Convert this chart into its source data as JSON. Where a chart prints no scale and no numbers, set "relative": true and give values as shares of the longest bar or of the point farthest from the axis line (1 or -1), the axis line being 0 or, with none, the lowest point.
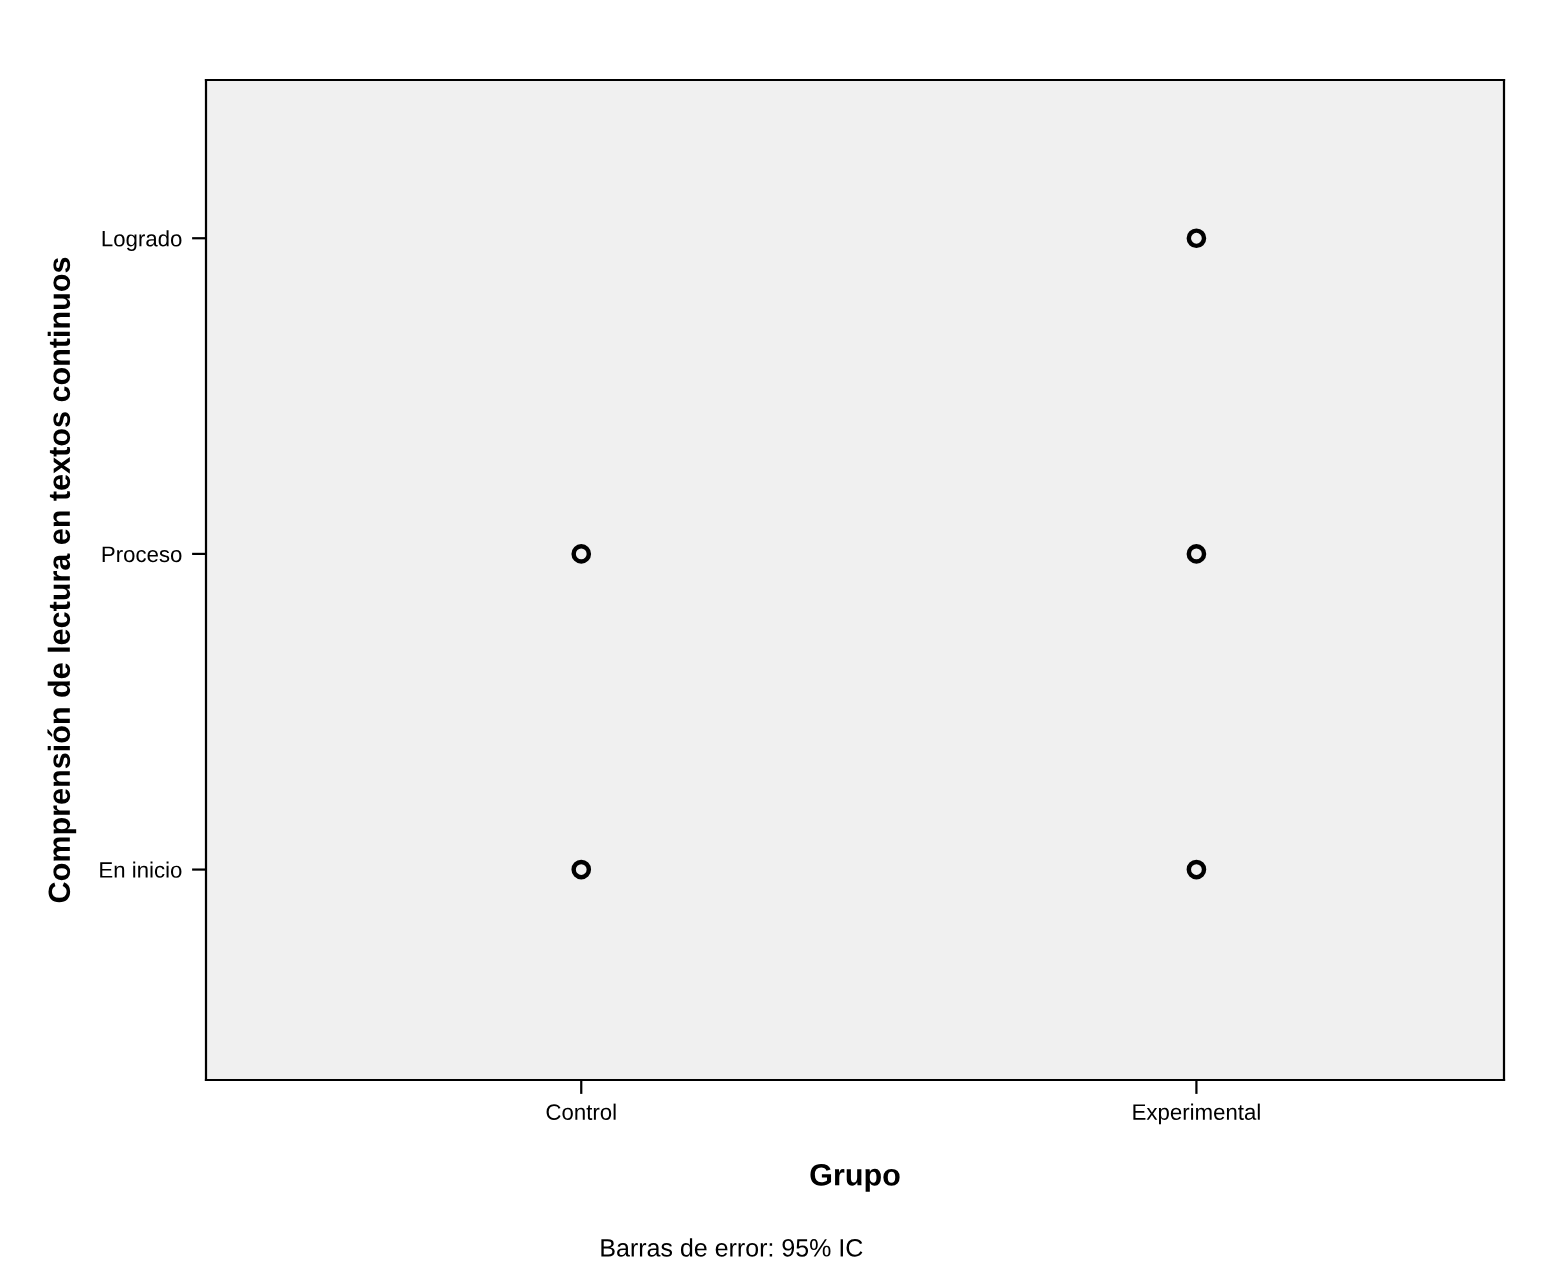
{
  "chart_data": {
    "type": "scatter",
    "xlabel": "Grupo",
    "ylabel": "Comprensión de lectura en textos continuos",
    "categories": [
      "Control",
      "Experimental"
    ],
    "y_categories": [
      "Logrado",
      "Proceso",
      "En inicio"
    ],
    "relative": true,
    "series": [
      {
        "x": [
          "Control",
          "Control",
          "Experimental",
          "Experimental",
          "Experimental"
        ],
        "values": [
          0.625,
          0.25,
          1,
          0.625,
          0.25
        ],
        "color": "#000000"
      }
    ],
    "marker": "circle",
    "grid": false,
    "legend": false,
    "annotations": [
      "Barras de error: 95% IC"
    ]
  }
}
